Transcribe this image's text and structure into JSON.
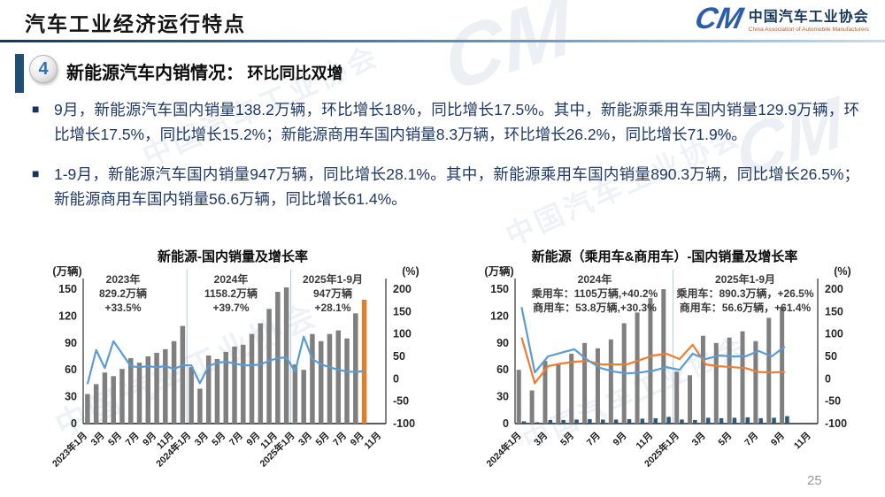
{
  "header": {
    "title": "汽车工业经济运行特点",
    "logo": {
      "mark": "CM",
      "org_cn": "中国汽车工业协会",
      "org_en": "China Association of Automobile Manufacturers"
    }
  },
  "section": {
    "badge": "4",
    "heading_main": "新能源汽车内销情况：",
    "heading_sub": "环比同比双增"
  },
  "bullets": [
    {
      "text": "9月，新能源汽车国内销量138.2万辆，环比增长18%，同比增长17.5%。其中，新能源乘用车国内销量129.9万辆，环比增长17.5%，同比增长15.2%；新能源商用车国内销量8.3万辆，环比增长26.2%，同比增长71.9%。"
    },
    {
      "text": "1-9月，新能源汽车国内销量947万辆，同比增长28.1%。其中，新能源乘用车国内销量890.3万辆，同比增长26.5%；新能源商用车国内销量56.6万辆，同比增长61.4%。"
    }
  ],
  "watermark": {
    "text": "中国汽车工业协会",
    "mark": "CM"
  },
  "page_number": "25",
  "colors": {
    "line_blue": "#5b9bd5",
    "line_orange": "#ed7d31",
    "bar_gray": "#7f7f7f",
    "bar_navy": "#2e5a78",
    "bar_highlight_orange": "#e0802f",
    "text_navy": "#1f3864"
  },
  "chart_data": [
    {
      "type": "bar+line",
      "title": "新能源-国内销量及增长率",
      "left_axis": {
        "label": "(万辆)",
        "range": [
          0,
          150
        ],
        "ticks": [
          0,
          30,
          60,
          90,
          120,
          150
        ]
      },
      "right_axis": {
        "label": "(%)",
        "range": [
          -100,
          200
        ],
        "ticks": [
          -100,
          -50,
          0,
          50,
          100,
          150,
          200
        ]
      },
      "x_slot_count": 35,
      "x_tick_labels": [
        "2023年1月",
        "3月",
        "5月",
        "7月",
        "9月",
        "11月",
        "2024年1月",
        "3月",
        "5月",
        "7月",
        "9月",
        "11月",
        "2025年1月",
        "3月",
        "5月",
        "7月",
        "9月",
        "11月"
      ],
      "year_separator_slots": [
        12,
        24
      ],
      "series": [
        {
          "name": "国内销量（万辆）",
          "type": "bar",
          "axis": "left",
          "color": "#7f7f7f",
          "last_color": "#e0802f",
          "width": 5.5,
          "offset": 0,
          "values": [
            33,
            44,
            57,
            53,
            61,
            73,
            68,
            75,
            79,
            83,
            92,
            109,
            63,
            39,
            76,
            72,
            80,
            86,
            88,
            100,
            112,
            128,
            147,
            152,
            66,
            60,
            100,
            92,
            100,
            104,
            95,
            123,
            138.2
          ]
        },
        {
          "name": "同比增长率（%）",
          "type": "line",
          "axis": "right",
          "color": "#5b9bd5",
          "values": [
            -12,
            64,
            24,
            84,
            56,
            28,
            26,
            28,
            26,
            28,
            22,
            30,
            30,
            -10,
            28,
            36,
            38,
            34,
            30,
            30,
            32,
            40,
            46,
            48,
            16,
            94,
            44,
            32,
            26,
            20,
            16,
            15,
            17.5
          ]
        }
      ],
      "annotations": [
        {
          "lines": [
            "2023年",
            "829.2万辆",
            "+33.5%"
          ]
        },
        {
          "lines": [
            "2024年",
            "1158.2万辆",
            "+39.7%"
          ]
        },
        {
          "lines": [
            "2025年1-9月",
            "947万辆",
            "+28.1%"
          ]
        }
      ]
    },
    {
      "type": "bar+line",
      "title": "新能源（乘用车&商用车）-国内销量及增长率",
      "left_axis": {
        "label": "(万辆)",
        "range": [
          0,
          150
        ],
        "ticks": [
          0,
          30,
          60,
          90,
          120,
          150
        ]
      },
      "right_axis": {
        "label": "(%)",
        "range": [
          -100,
          200
        ],
        "ticks": [
          -100,
          -50,
          0,
          50,
          100,
          150,
          200
        ]
      },
      "x_slot_count": 23,
      "x_tick_labels": [
        "2024年1月",
        "3月",
        "5月",
        "7月",
        "9月",
        "11月",
        "2025年1月",
        "3月",
        "5月",
        "7月",
        "9月",
        "11月"
      ],
      "year_separator_slots": [
        12
      ],
      "series": [
        {
          "name": "乘用车国内销量（万辆）",
          "type": "bar",
          "axis": "left",
          "color": "#7f7f7f",
          "width": 5,
          "offset": -3.2,
          "values": [
            60,
            37,
            70,
            66,
            78,
            90,
            84,
            94,
            112,
            124,
            140,
            150,
            58,
            54,
            98,
            90,
            96,
            103,
            92,
            118,
            129.9
          ]
        },
        {
          "name": "商用车国内销量（万辆）",
          "type": "bar",
          "axis": "left",
          "color": "#2e5a78",
          "width": 4.5,
          "offset": 2.6,
          "values": [
            2.5,
            1.5,
            4,
            4,
            4.5,
            5,
            4.5,
            4.5,
            5,
            5.5,
            6,
            7.5,
            4.5,
            4,
            6.5,
            6,
            6.5,
            7,
            6,
            6.5,
            8.3
          ]
        },
        {
          "name": "乘用车同比增长率（%）",
          "type": "line",
          "axis": "right",
          "color": "#ed7d31",
          "values": [
            92,
            -10,
            28,
            34,
            38,
            40,
            32,
            32,
            32,
            42,
            52,
            56,
            44,
            76,
            32,
            28,
            26,
            24,
            15,
            14,
            15.2
          ]
        },
        {
          "name": "商用车同比增长率（%）",
          "type": "line",
          "axis": "right",
          "color": "#5b9bd5",
          "values": [
            160,
            14,
            50,
            58,
            66,
            42,
            24,
            16,
            12,
            14,
            18,
            26,
            20,
            56,
            44,
            52,
            50,
            50,
            62,
            50,
            71.9
          ]
        }
      ],
      "annotations": [
        {
          "lines": [
            "2024年",
            "乘用车：1105万辆,+40.2%",
            "商用车：53.8万辆,+30.3%"
          ]
        },
        {
          "lines": [
            "2025年1-9月",
            "乘用车：890.3万辆，+26.5%",
            "商用车：56.6万辆，+61.4%"
          ]
        }
      ]
    }
  ]
}
